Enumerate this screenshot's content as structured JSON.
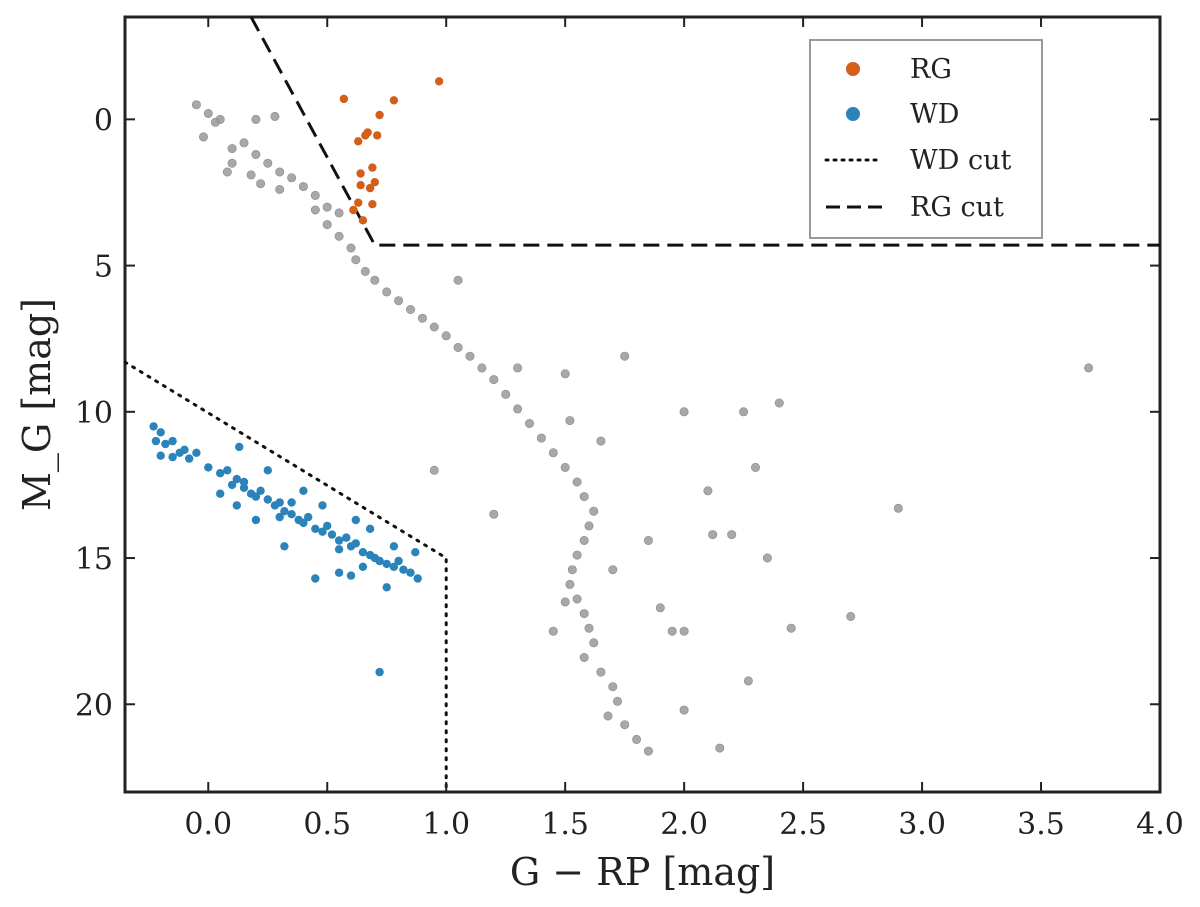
{
  "chart_data": {
    "type": "scatter",
    "xlabel": "G − RP [mag]",
    "ylabel": "M_G [mag]",
    "xlim": [
      -0.35,
      4.0
    ],
    "ylim": [
      23,
      -3.5
    ],
    "y_inverted": true,
    "xticks": [
      "0.0",
      "0.5",
      "1.0",
      "1.5",
      "2.0",
      "2.5",
      "3.0",
      "3.5",
      "4.0"
    ],
    "yticks": [
      "0",
      "5",
      "10",
      "15",
      "20"
    ],
    "legend_position": "top-right",
    "grid": false,
    "colors": {
      "RG": "#d35f1a",
      "WD": "#2b83ba",
      "other": "#999999"
    },
    "series": [
      {
        "name": "RG",
        "marker": "circle",
        "points": [
          [
            0.97,
            -1.3
          ],
          [
            0.57,
            -0.7
          ],
          [
            0.78,
            -0.65
          ],
          [
            0.72,
            -0.15
          ],
          [
            0.67,
            0.45
          ],
          [
            0.63,
            0.75
          ],
          [
            0.71,
            0.55
          ],
          [
            0.66,
            0.55
          ],
          [
            0.69,
            1.65
          ],
          [
            0.64,
            1.85
          ],
          [
            0.7,
            2.15
          ],
          [
            0.64,
            2.25
          ],
          [
            0.68,
            2.35
          ],
          [
            0.69,
            2.9
          ],
          [
            0.63,
            2.85
          ],
          [
            0.65,
            3.45
          ],
          [
            0.61,
            3.1
          ]
        ]
      },
      {
        "name": "WD",
        "marker": "circle",
        "points": [
          [
            -0.23,
            10.5
          ],
          [
            -0.2,
            10.7
          ],
          [
            -0.22,
            11.0
          ],
          [
            -0.18,
            11.1
          ],
          [
            -0.15,
            11.0
          ],
          [
            -0.12,
            11.4
          ],
          [
            -0.1,
            11.3
          ],
          [
            -0.05,
            11.4
          ],
          [
            -0.2,
            11.5
          ],
          [
            -0.15,
            11.55
          ],
          [
            -0.08,
            11.6
          ],
          [
            0.0,
            11.9
          ],
          [
            0.05,
            12.1
          ],
          [
            0.08,
            12.0
          ],
          [
            0.12,
            12.3
          ],
          [
            0.15,
            12.4
          ],
          [
            0.1,
            12.5
          ],
          [
            0.18,
            12.8
          ],
          [
            0.2,
            12.9
          ],
          [
            0.22,
            12.7
          ],
          [
            0.25,
            13.0
          ],
          [
            0.28,
            13.2
          ],
          [
            0.3,
            13.1
          ],
          [
            0.32,
            13.4
          ],
          [
            0.35,
            13.5
          ],
          [
            0.3,
            13.6
          ],
          [
            0.38,
            13.7
          ],
          [
            0.4,
            13.8
          ],
          [
            0.42,
            13.6
          ],
          [
            0.45,
            14.0
          ],
          [
            0.48,
            14.1
          ],
          [
            0.5,
            13.9
          ],
          [
            0.52,
            14.2
          ],
          [
            0.55,
            14.4
          ],
          [
            0.58,
            14.3
          ],
          [
            0.6,
            14.6
          ],
          [
            0.62,
            14.5
          ],
          [
            0.65,
            14.8
          ],
          [
            0.68,
            14.9
          ],
          [
            0.7,
            15.0
          ],
          [
            0.72,
            15.1
          ],
          [
            0.75,
            15.2
          ],
          [
            0.78,
            15.3
          ],
          [
            0.8,
            15.1
          ],
          [
            0.82,
            15.4
          ],
          [
            0.85,
            15.5
          ],
          [
            0.88,
            15.7
          ],
          [
            0.65,
            15.3
          ],
          [
            0.55,
            15.5
          ],
          [
            0.45,
            15.7
          ],
          [
            0.6,
            15.6
          ],
          [
            0.75,
            16.0
          ],
          [
            0.72,
            18.9
          ],
          [
            0.32,
            14.6
          ],
          [
            0.2,
            13.7
          ],
          [
            0.12,
            13.2
          ],
          [
            0.05,
            12.8
          ],
          [
            0.25,
            12.0
          ],
          [
            0.13,
            11.2
          ],
          [
            0.4,
            12.7
          ],
          [
            0.48,
            13.2
          ],
          [
            0.62,
            13.7
          ],
          [
            0.68,
            14.0
          ],
          [
            0.55,
            14.7
          ],
          [
            0.78,
            14.6
          ],
          [
            0.87,
            14.8
          ],
          [
            0.35,
            13.1
          ],
          [
            0.15,
            12.6
          ]
        ]
      },
      {
        "name": "",
        "marker": "circle",
        "points": [
          [
            -0.05,
            -0.5
          ],
          [
            0.0,
            -0.2
          ],
          [
            0.05,
            0.0
          ],
          [
            0.03,
            0.1
          ],
          [
            -0.02,
            0.6
          ],
          [
            0.15,
            0.8
          ],
          [
            0.1,
            1.0
          ],
          [
            0.2,
            1.2
          ],
          [
            0.25,
            1.5
          ],
          [
            0.3,
            1.8
          ],
          [
            0.35,
            2.0
          ],
          [
            0.4,
            2.3
          ],
          [
            0.45,
            2.6
          ],
          [
            0.5,
            3.0
          ],
          [
            0.55,
            3.2
          ],
          [
            0.45,
            3.1
          ],
          [
            0.5,
            3.6
          ],
          [
            0.55,
            4.0
          ],
          [
            0.6,
            4.4
          ],
          [
            0.62,
            4.8
          ],
          [
            0.66,
            5.2
          ],
          [
            0.7,
            5.5
          ],
          [
            0.75,
            5.9
          ],
          [
            0.8,
            6.2
          ],
          [
            0.85,
            6.5
          ],
          [
            0.9,
            6.8
          ],
          [
            0.95,
            7.1
          ],
          [
            1.0,
            7.4
          ],
          [
            1.05,
            7.8
          ],
          [
            1.1,
            8.1
          ],
          [
            1.15,
            8.5
          ],
          [
            1.2,
            8.9
          ],
          [
            1.25,
            9.4
          ],
          [
            1.3,
            9.9
          ],
          [
            1.35,
            10.4
          ],
          [
            1.4,
            10.9
          ],
          [
            1.45,
            11.4
          ],
          [
            1.5,
            11.9
          ],
          [
            1.55,
            12.4
          ],
          [
            1.58,
            12.9
          ],
          [
            1.62,
            13.4
          ],
          [
            1.6,
            13.9
          ],
          [
            1.58,
            14.4
          ],
          [
            1.55,
            14.9
          ],
          [
            1.53,
            15.4
          ],
          [
            1.52,
            15.9
          ],
          [
            1.55,
            16.4
          ],
          [
            1.58,
            16.9
          ],
          [
            1.6,
            17.4
          ],
          [
            1.62,
            17.9
          ],
          [
            1.58,
            18.4
          ],
          [
            1.65,
            18.9
          ],
          [
            1.7,
            19.4
          ],
          [
            1.72,
            19.9
          ],
          [
            1.68,
            20.4
          ],
          [
            1.75,
            20.7
          ],
          [
            1.8,
            21.2
          ],
          [
            1.85,
            21.6
          ],
          [
            2.0,
            20.2
          ],
          [
            2.15,
            21.5
          ],
          [
            1.9,
            16.7
          ],
          [
            1.95,
            17.5
          ],
          [
            2.0,
            17.5
          ],
          [
            2.1,
            12.7
          ],
          [
            2.12,
            14.2
          ],
          [
            2.2,
            14.2
          ],
          [
            2.25,
            10.0
          ],
          [
            2.0,
            10.0
          ],
          [
            2.35,
            15.0
          ],
          [
            2.4,
            9.7
          ],
          [
            2.3,
            11.9
          ],
          [
            2.27,
            19.2
          ],
          [
            2.45,
            17.4
          ],
          [
            2.7,
            17.0
          ],
          [
            2.9,
            13.3
          ],
          [
            3.7,
            8.5
          ],
          [
            1.75,
            8.1
          ],
          [
            1.5,
            8.7
          ],
          [
            1.52,
            10.3
          ],
          [
            1.65,
            11.0
          ],
          [
            1.85,
            14.4
          ],
          [
            1.7,
            15.4
          ],
          [
            1.5,
            16.5
          ],
          [
            1.45,
            17.5
          ],
          [
            1.3,
            8.5
          ],
          [
            1.05,
            5.5
          ],
          [
            0.95,
            12.0
          ],
          [
            1.2,
            13.5
          ],
          [
            0.2,
            0.0
          ],
          [
            0.28,
            -0.1
          ],
          [
            0.1,
            1.5
          ],
          [
            0.08,
            1.8
          ],
          [
            0.18,
            1.9
          ],
          [
            0.22,
            2.2
          ],
          [
            0.3,
            2.4
          ]
        ]
      }
    ],
    "cuts": [
      {
        "name": "WD cut",
        "style": "dotted",
        "points": [
          [
            -0.35,
            8.3
          ],
          [
            1.0,
            15.0
          ],
          [
            1.0,
            23.0
          ]
        ]
      },
      {
        "name": "RG cut",
        "style": "dashed",
        "points": [
          [
            0.18,
            -3.5
          ],
          [
            0.7,
            4.3
          ],
          [
            4.0,
            4.3
          ]
        ]
      }
    ]
  }
}
